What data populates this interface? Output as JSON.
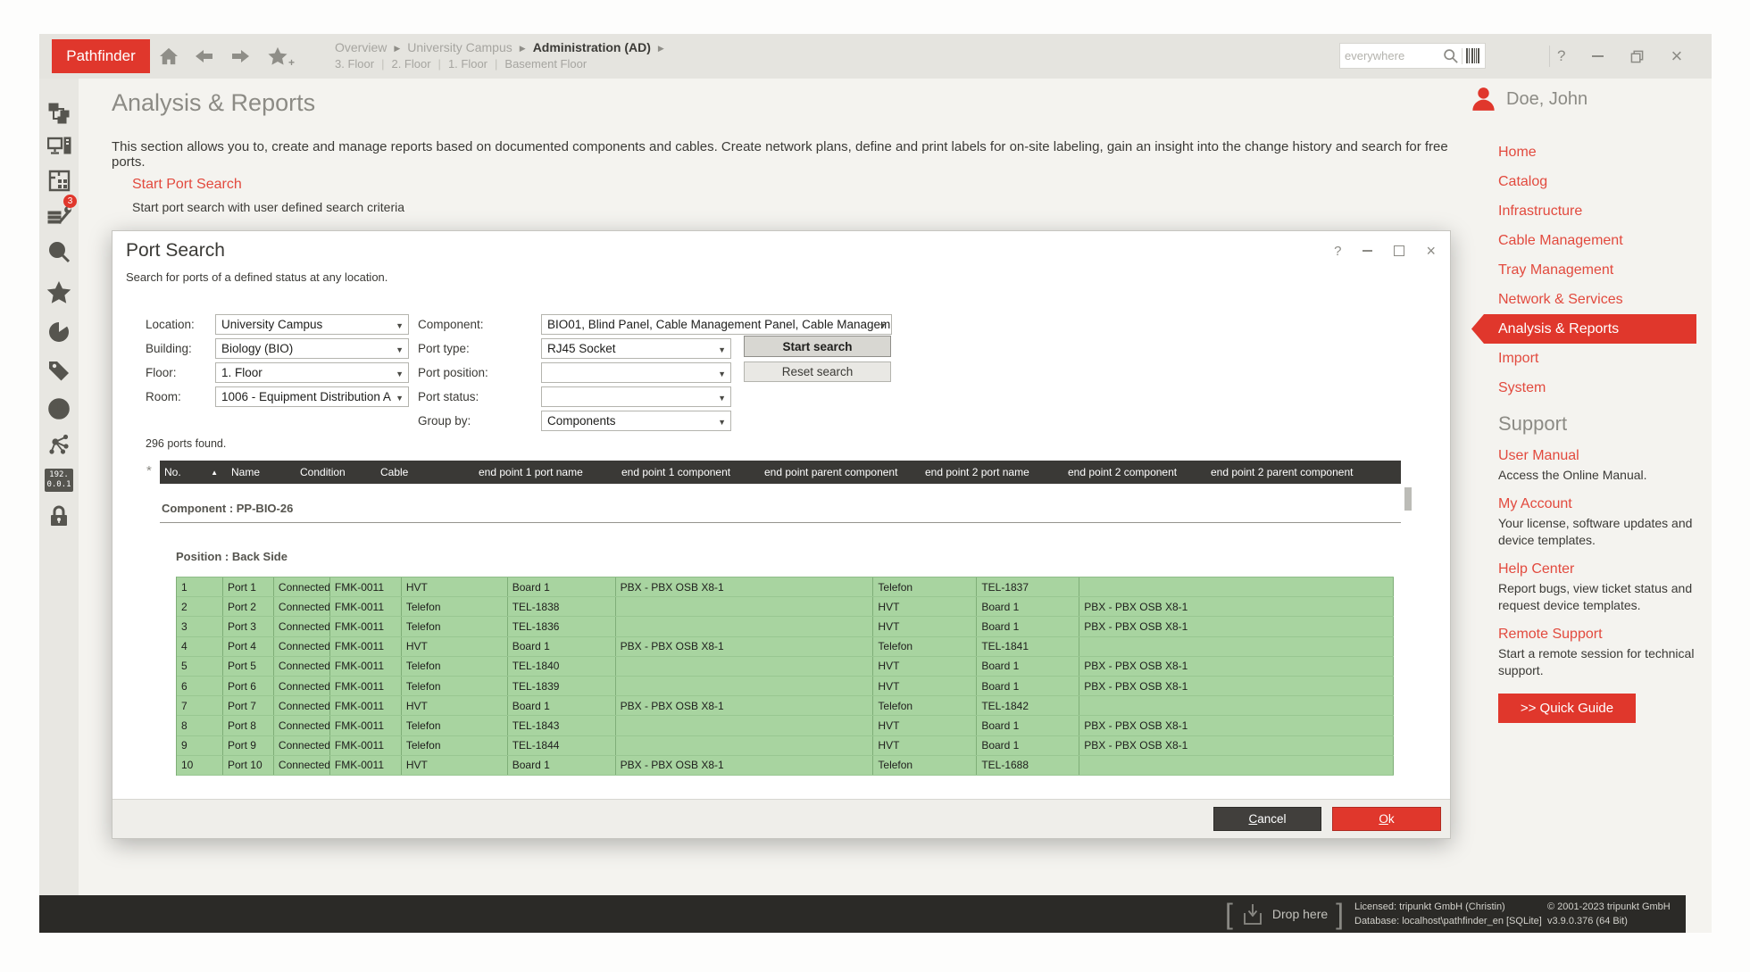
{
  "app": {
    "logo": "Pathfinder",
    "search_placeholder": "everywhere",
    "breadcrumb": [
      "Overview",
      "University Campus",
      "Administration (AD)"
    ],
    "floor_links": [
      "3. Floor",
      "2. Floor",
      "1. Floor",
      "Basement Floor"
    ],
    "user": "Doe, John",
    "help_glyph": "?"
  },
  "icons": {
    "topbar": [
      "home-icon",
      "back-icon",
      "forward-icon",
      "favorite-add-icon",
      "search-icon",
      "barcode-icon",
      "help-icon",
      "minimize-icon",
      "restore-icon",
      "close-icon"
    ],
    "sidebar": [
      "topology-icon",
      "workstation-icon",
      "floorplan-icon",
      "tasks-icon",
      "search-icon",
      "favorites-icon",
      "pie-chart-icon",
      "tag-icon",
      "history-icon",
      "network-icon",
      "ip-address-icon",
      "lock-icon"
    ],
    "badge": "3",
    "ip_line1": "192.",
    "ip_line2": "0.0.1",
    "close_glyph": "×",
    "sort_arrow": "▲",
    "pin_glyph": "*"
  },
  "page": {
    "title": "Analysis & Reports",
    "intro": "This section allows you to, create and manage reports based on documented components and cables. Create network plans, define and print labels for on-site labeling, gain an insight into the change history and search for free ports.",
    "link_title": "Start Port Search",
    "link_subtitle": "Start port search with user defined search criteria"
  },
  "dialog": {
    "title": "Port Search",
    "subtitle": "Search for ports of a defined status at any location.",
    "form": {
      "location_label": "Location:",
      "location_value": "University Campus",
      "building_label": "Building:",
      "building_value": "Biology (BIO)",
      "floor_label": "Floor:",
      "floor_value": "1. Floor",
      "room_label": "Room:",
      "room_value": "1006 - Equipment Distribution A",
      "component_label": "Component:",
      "component_value": "BIO01, Blind Panel, Cable Management Panel, Cable Managem",
      "port_type_label": "Port type:",
      "port_type_value": "RJ45 Socket",
      "port_position_label": "Port position:",
      "port_position_value": "",
      "port_status_label": "Port status:",
      "port_status_value": "",
      "group_by_label": "Group by:",
      "group_by_value": "Components",
      "start_button": "Start search",
      "reset_button": "Reset search"
    },
    "results_summary": "296 ports found.",
    "table": {
      "columns": [
        "No.",
        "Name",
        "Condition",
        "Cable",
        "end point 1 port name",
        "end point 1 component",
        "end point parent component",
        "end point 2 port name",
        "end point 2 component",
        "end point 2 parent component"
      ],
      "group_label": "Component : PP-BIO-26",
      "position_label": "Position : Back Side",
      "rows": [
        [
          "1",
          "Port 1",
          "Connected",
          "FMK-0011",
          "HVT",
          "Board 1",
          "PBX - PBX OSB X8-1",
          "Telefon",
          "TEL-1837",
          ""
        ],
        [
          "2",
          "Port 2",
          "Connected",
          "FMK-0011",
          "Telefon",
          "TEL-1838",
          "",
          "HVT",
          "Board 1",
          "PBX - PBX OSB X8-1"
        ],
        [
          "3",
          "Port 3",
          "Connected",
          "FMK-0011",
          "Telefon",
          "TEL-1836",
          "",
          "HVT",
          "Board 1",
          "PBX - PBX OSB X8-1"
        ],
        [
          "4",
          "Port 4",
          "Connected",
          "FMK-0011",
          "HVT",
          "Board 1",
          "PBX - PBX OSB X8-1",
          "Telefon",
          "TEL-1841",
          ""
        ],
        [
          "5",
          "Port 5",
          "Connected",
          "FMK-0011",
          "Telefon",
          "TEL-1840",
          "",
          "HVT",
          "Board 1",
          "PBX - PBX OSB X8-1"
        ],
        [
          "6",
          "Port 6",
          "Connected",
          "FMK-0011",
          "Telefon",
          "TEL-1839",
          "",
          "HVT",
          "Board 1",
          "PBX - PBX OSB X8-1"
        ],
        [
          "7",
          "Port 7",
          "Connected",
          "FMK-0011",
          "HVT",
          "Board 1",
          "PBX - PBX OSB X8-1",
          "Telefon",
          "TEL-1842",
          ""
        ],
        [
          "8",
          "Port 8",
          "Connected",
          "FMK-0011",
          "Telefon",
          "TEL-1843",
          "",
          "HVT",
          "Board 1",
          "PBX - PBX OSB X8-1"
        ],
        [
          "9",
          "Port 9",
          "Connected",
          "FMK-0011",
          "Telefon",
          "TEL-1844",
          "",
          "HVT",
          "Board 1",
          "PBX - PBX OSB X8-1"
        ],
        [
          "10",
          "Port 10",
          "Connected",
          "FMK-0011",
          "HVT",
          "Board 1",
          "PBX - PBX OSB X8-1",
          "Telefon",
          "TEL-1688",
          ""
        ]
      ]
    },
    "cancel_button": "Cancel",
    "ok_button": "Ok"
  },
  "nav": {
    "items": [
      "Home",
      "Catalog",
      "Infrastructure",
      "Cable Management",
      "Tray Management",
      "Network & Services",
      "Analysis & Reports",
      "Import",
      "System"
    ],
    "active": "Analysis & Reports"
  },
  "support": {
    "heading": "Support",
    "items": [
      {
        "title": "User Manual",
        "desc": "Access the Online Manual."
      },
      {
        "title": "My Account",
        "desc": "Your license, software updates and device templates."
      },
      {
        "title": "Help Center",
        "desc": "Report bugs, view ticket status and request device templates."
      },
      {
        "title": "Remote Support",
        "desc": "Start a remote session for technical support."
      }
    ],
    "quick_guide_button": ">> Quick Guide"
  },
  "statusbar": {
    "drop_label": "Drop here",
    "licensed": "Licensed: tripunkt GmbH (Christin)",
    "database": "Database: localhost\\pathfinder_en [SQLite]",
    "copyright": "© 2001-2023 tripunkt GmbH",
    "version": "v3.9.0.376 (64 Bit)"
  },
  "colors": {
    "accent": "#e0372c",
    "link_red": "#e24a3e",
    "row_green": "#a8d4a0",
    "table_header": "#3a3936",
    "statusbar_bg": "#2b2a27"
  }
}
